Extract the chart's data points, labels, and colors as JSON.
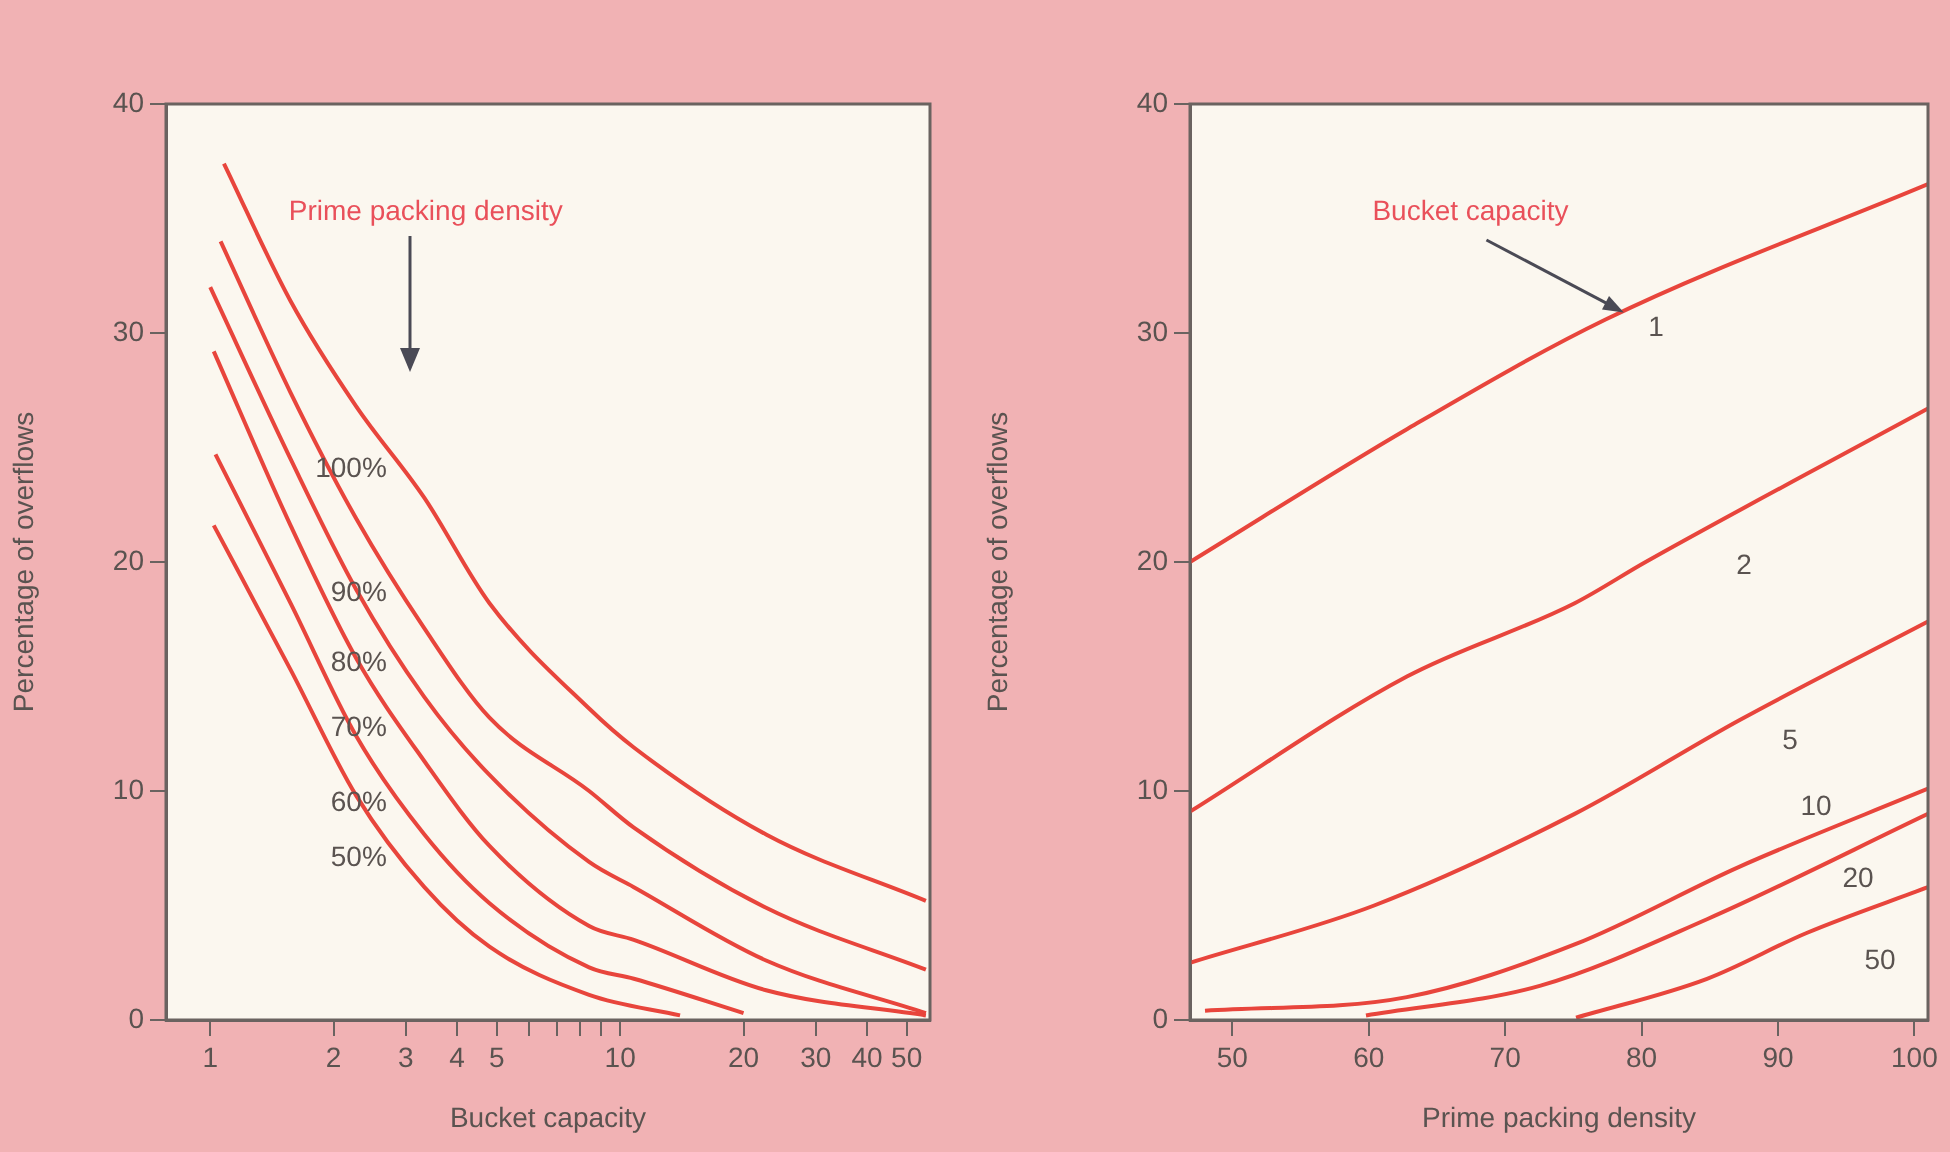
{
  "chart_data": [
    {
      "type": "line",
      "xlabel": "Bucket capacity",
      "ylabel": "Percentage of overflows",
      "log": "x",
      "xlim": [
        0.78,
        57
      ],
      "ylim": [
        0,
        40
      ],
      "xticks": [
        1,
        2,
        3,
        4,
        5,
        {
          "value": 6,
          "label": null
        },
        {
          "value": 7,
          "label": null
        },
        {
          "value": 8,
          "label": null
        },
        {
          "value": 9,
          "label": null
        },
        10,
        20,
        30,
        40,
        50
      ],
      "yticks": [
        0,
        10,
        20,
        30,
        40
      ],
      "marker": "none",
      "legend": false,
      "annotations": [
        "Prime packing density"
      ],
      "series": [
        {
          "name": "100%",
          "color": "#e8453c",
          "x": [
            1.08,
            1.57,
            2.27,
            3.33,
            4.8,
            8.4,
            10.8,
            22.7,
            55.7
          ],
          "values": [
            37.4,
            31.4,
            26.8,
            22.8,
            18.2,
            13.6,
            11.9,
            8.1,
            5.2
          ]
        },
        {
          "name": "90%",
          "color": "#e8453c",
          "x": [
            1.06,
            1.57,
            2.27,
            3.33,
            4.8,
            8.4,
            10.8,
            22.7,
            55.7
          ],
          "values": [
            34.0,
            27.4,
            21.9,
            17.1,
            13.2,
            10.0,
            8.4,
            4.9,
            2.2
          ]
        },
        {
          "name": "80%",
          "color": "#e8453c",
          "x": [
            1.0,
            1.57,
            2.27,
            3.33,
            4.8,
            8.4,
            10.8,
            22.7,
            55.7
          ],
          "values": [
            32.0,
            24.5,
            18.8,
            14.1,
            10.7,
            6.9,
            5.8,
            2.6,
            0.3
          ]
        },
        {
          "name": "70%",
          "color": "#e8453c",
          "x": [
            1.02,
            1.57,
            2.27,
            3.33,
            4.8,
            8.4,
            10.8,
            22.7,
            55.7
          ],
          "values": [
            29.2,
            21.6,
            15.8,
            11.3,
            7.6,
            4.1,
            3.5,
            1.3,
            0.2
          ]
        },
        {
          "name": "60%",
          "color": "#e8453c",
          "x": [
            1.03,
            1.57,
            2.27,
            3.33,
            4.8,
            8.4,
            10.8,
            20
          ],
          "values": [
            24.7,
            18.2,
            12.4,
            8.1,
            5.1,
            2.3,
            1.8,
            0.3
          ]
        },
        {
          "name": "50%",
          "color": "#e8453c",
          "x": [
            1.02,
            1.57,
            2.27,
            3.33,
            4.8,
            8.4,
            14
          ],
          "values": [
            21.6,
            15.3,
            9.8,
            5.8,
            3.2,
            1.1,
            0.2
          ]
        }
      ]
    },
    {
      "type": "line",
      "xlabel": "Prime packing density",
      "ylabel": "Percentage of overflows",
      "xlim": [
        46.9,
        101
      ],
      "ylim": [
        0,
        40
      ],
      "xticks": [
        50,
        60,
        70,
        80,
        90,
        100
      ],
      "yticks": [
        0,
        10,
        20,
        30,
        40
      ],
      "marker": "none",
      "legend": false,
      "annotations": [
        {
          "text": "Bucket capacity",
          "x": 78.7,
          "y": 30.9
        }
      ],
      "series": [
        {
          "name": "1",
          "color": "#e8453c",
          "x": [
            46.9,
            62.8,
            77.4,
            101
          ],
          "values": [
            20.0,
            25.8,
            30.6,
            36.5
          ]
        },
        {
          "name": "2",
          "color": "#e8453c",
          "x": [
            46.9,
            62.8,
            75.1,
            80.3,
            101
          ],
          "values": [
            9.1,
            15.0,
            18.2,
            20.0,
            26.7
          ]
        },
        {
          "name": "5",
          "color": "#e8453c",
          "x": [
            46.9,
            60.4,
            75.1,
            87.2,
            101
          ],
          "values": [
            2.5,
            5.0,
            9.0,
            13.1,
            17.4
          ]
        },
        {
          "name": "10",
          "color": "#e8453c",
          "x": [
            48,
            62.8,
            75.1,
            87.2,
            101
          ],
          "values": [
            0.4,
            1.0,
            3.3,
            6.7,
            10.1
          ]
        },
        {
          "name": "20",
          "color": "#e8453c",
          "x": [
            59.8,
            72.6,
            84.8,
            101
          ],
          "values": [
            0.2,
            1.5,
            4.4,
            9.0
          ]
        },
        {
          "name": "50",
          "color": "#e8453c",
          "x": [
            75.2,
            84.8,
            92.1,
            101
          ],
          "values": [
            0.1,
            1.8,
            3.8,
            5.8
          ]
        }
      ]
    }
  ]
}
